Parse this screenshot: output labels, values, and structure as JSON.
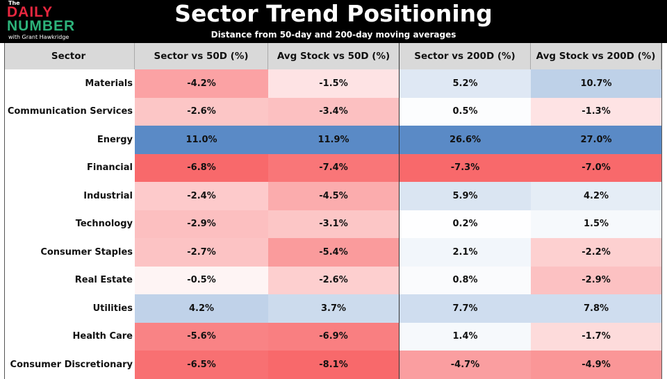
{
  "logo": {
    "the": "The",
    "line1": "DAILY",
    "line2": "NUMBER",
    "byline": "with Grant Hawkridge"
  },
  "title": "Sector Trend Positioning",
  "subtitle": "Distance from 50-day and 200-day moving averages",
  "chart_data": {
    "type": "table",
    "columns": [
      "Sector",
      "Sector vs 50D (%)",
      "Avg Stock vs 50D (%)",
      "Sector vs 200D (%)",
      "Avg Stock vs 200D (%)"
    ],
    "color_scale": {
      "negative": "#f8696b",
      "zero": "#ffffff",
      "positive": "#5a8ac6"
    },
    "rows": [
      {
        "sector": "Materials",
        "values": [
          -4.2,
          -1.5,
          5.2,
          10.7
        ]
      },
      {
        "sector": "Communication Services",
        "values": [
          -2.6,
          -3.4,
          0.5,
          -1.3
        ]
      },
      {
        "sector": "Energy",
        "values": [
          11.0,
          11.9,
          26.6,
          27.0
        ]
      },
      {
        "sector": "Financial",
        "values": [
          -6.8,
          -7.4,
          -7.3,
          -7.0
        ]
      },
      {
        "sector": "Industrial",
        "values": [
          -2.4,
          -4.5,
          5.9,
          4.2
        ]
      },
      {
        "sector": "Technology",
        "values": [
          -2.9,
          -3.1,
          0.2,
          1.5
        ]
      },
      {
        "sector": "Consumer Staples",
        "values": [
          -2.7,
          -5.4,
          2.1,
          -2.2
        ]
      },
      {
        "sector": "Real Estate",
        "values": [
          -0.5,
          -2.6,
          0.8,
          -2.9
        ]
      },
      {
        "sector": "Utilities",
        "values": [
          4.2,
          3.7,
          7.7,
          7.8
        ]
      },
      {
        "sector": "Health Care",
        "values": [
          -5.6,
          -6.9,
          1.4,
          -1.7
        ]
      },
      {
        "sector": "Consumer Discretionary",
        "values": [
          -6.5,
          -8.1,
          -4.7,
          -4.9
        ]
      }
    ]
  }
}
